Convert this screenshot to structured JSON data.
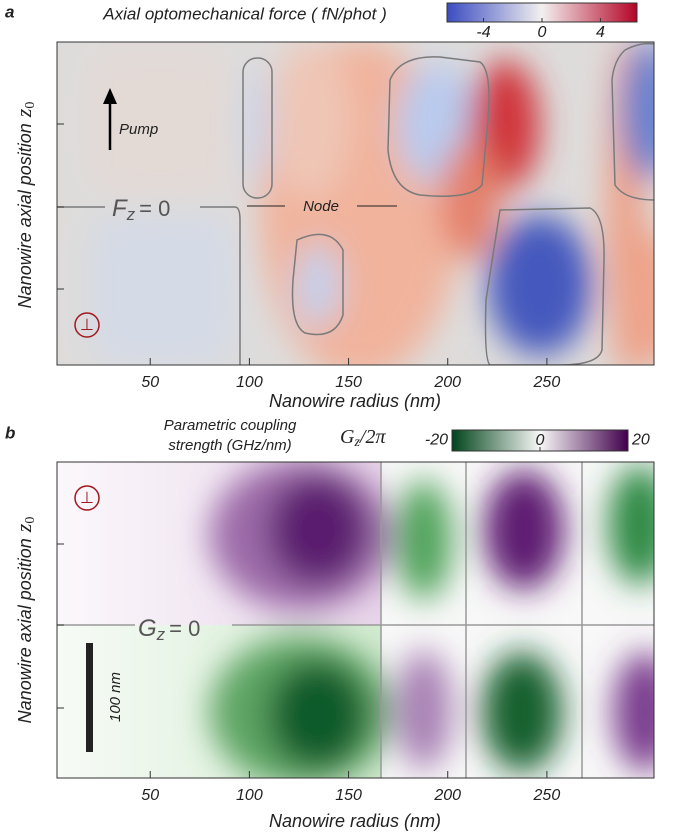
{
  "chart_data": [
    {
      "type": "heatmap",
      "panel": "a",
      "title": "Axial optomechanical force ( fN/phot )",
      "xlabel": "Nanowire radius (nm)",
      "ylabel": "Nanowire axial position",
      "ylabel_symbol": "z",
      "ylabel_sub": "0",
      "xlim": [
        3,
        304
      ],
      "xticks": [
        50,
        100,
        150,
        200,
        250
      ],
      "clim": [
        -6.5,
        6.5
      ],
      "cticks": [
        -4,
        0,
        4
      ],
      "colormap": [
        "#3b4cc0",
        "#f2f0ef",
        "#b40426"
      ],
      "annotations": {
        "pump": "Pump",
        "node": "Node",
        "zero_symbol": "F",
        "zero_sub": "z",
        "zero_eq": "=  0",
        "polarization": "⊥"
      }
    },
    {
      "type": "heatmap",
      "panel": "b",
      "title": [
        "Parametric coupling",
        "strength (GHz/nm)"
      ],
      "colorbar_symbol": "G",
      "colorbar_sub": "z",
      "colorbar_rest": "/2π",
      "xlabel": "Nanowire radius (nm)",
      "ylabel": "Nanowire axial position",
      "ylabel_symbol": "z",
      "ylabel_sub": "0",
      "xlim": [
        3,
        304
      ],
      "xticks": [
        50,
        100,
        150,
        200,
        250
      ],
      "clim": [
        -20,
        20
      ],
      "cticks": [
        -20,
        0,
        20
      ],
      "colormap": [
        "#00441b",
        "#f7f7f7",
        "#40004b"
      ],
      "annotations": {
        "zero_symbol": "G",
        "zero_sub": "z",
        "zero_eq": "=  0",
        "polarization": "⊥",
        "scalebar": "100 nm"
      }
    }
  ]
}
